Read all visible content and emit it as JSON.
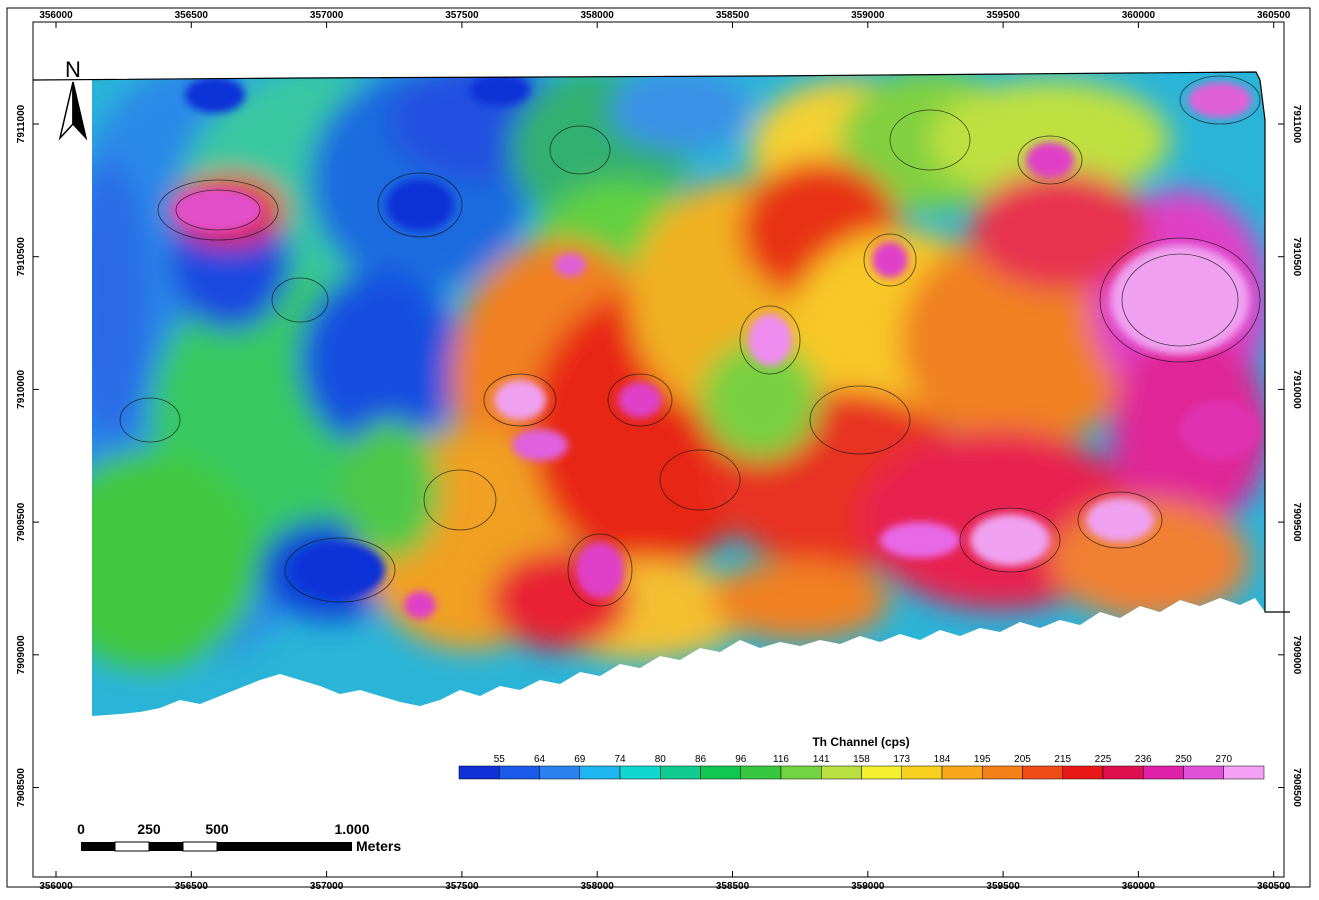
{
  "map": {
    "x_ticks": [
      "356000",
      "356500",
      "357000",
      "357500",
      "358000",
      "358500",
      "359000",
      "359500",
      "360000",
      "360500"
    ],
    "y_ticks": [
      "7911000",
      "7910500",
      "7910000",
      "7909500",
      "7909000",
      "7908500"
    ],
    "north_label": "N",
    "legend": {
      "title": "Th Channel (cps)",
      "labels": [
        "55",
        "64",
        "69",
        "74",
        "80",
        "86",
        "96",
        "116",
        "141",
        "158",
        "173",
        "184",
        "195",
        "205",
        "215",
        "225",
        "236",
        "250",
        "270"
      ],
      "colors": [
        "#1030d8",
        "#1a5ae8",
        "#2a82f0",
        "#1fb5f0",
        "#10d8d0",
        "#10cc90",
        "#10c850",
        "#38c840",
        "#72d440",
        "#b8e040",
        "#f4f030",
        "#f8d020",
        "#f8a818",
        "#f48018",
        "#f04c18",
        "#e81818",
        "#e01050",
        "#e020a8",
        "#e050d8",
        "#f4a0f4"
      ]
    },
    "scale_bar": {
      "labels": [
        "0",
        "250",
        "500",
        "1.000"
      ],
      "unit": "Meters"
    }
  }
}
